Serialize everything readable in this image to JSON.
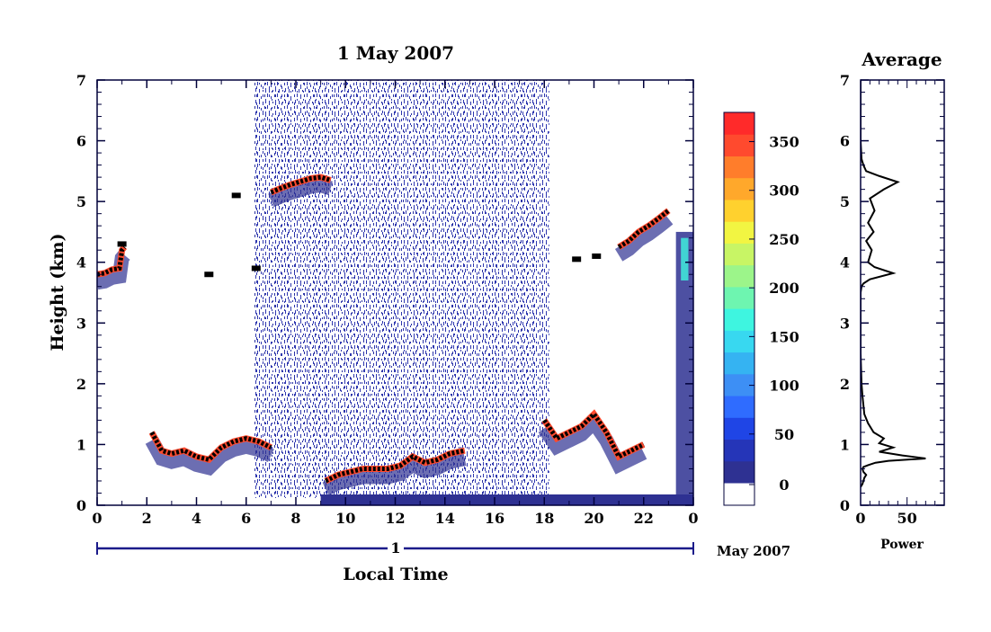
{
  "colors": {
    "colorbar": [
      "#ffffff",
      "#2e3192",
      "#2535b8",
      "#1f45e6",
      "#2f6cff",
      "#3d8ff5",
      "#35b3f2",
      "#38d8f0",
      "#3ef5e0",
      "#6ef5b0",
      "#9cf58a",
      "#c8f565",
      "#f2f542",
      "#ffd12e",
      "#ffa82b",
      "#ff7d2b",
      "#ff4a2e",
      "#ff2a2a"
    ],
    "axis": "#00003a",
    "track": "#1b1b8a"
  },
  "chart_data": [
    {
      "type": "heatmap",
      "title": "1 May 2007",
      "xlabel": "Local Time",
      "ylabel": "Height (km)",
      "x_ticks": [
        "0",
        "2",
        "4",
        "6",
        "8",
        "10",
        "12",
        "14",
        "16",
        "18",
        "20",
        "22",
        "0"
      ],
      "y_ticks": [
        "0",
        "1",
        "2",
        "3",
        "4",
        "5",
        "6",
        "7"
      ],
      "xlim": [
        0,
        24
      ],
      "ylim": [
        0,
        7
      ],
      "date_day": "1",
      "date_label": "May 2007",
      "noise_region_hours": [
        6.3,
        18.2
      ],
      "traces": [
        {
          "x": [
            0.0,
            0.3,
            0.6,
            0.9,
            1.0,
            1.1
          ],
          "y": [
            3.8,
            3.82,
            3.88,
            3.9,
            4.2,
            4.25
          ]
        },
        {
          "x": [
            2.2,
            2.6,
            3.0,
            3.5,
            4.0,
            4.5,
            5.0,
            5.5,
            6.0,
            6.5,
            7.0
          ],
          "y": [
            1.2,
            0.9,
            0.85,
            0.9,
            0.8,
            0.75,
            0.95,
            1.05,
            1.1,
            1.05,
            0.95
          ]
        },
        {
          "x": [
            7.0,
            7.4,
            7.8,
            8.2,
            8.6,
            9.0,
            9.4
          ],
          "y": [
            5.15,
            5.22,
            5.28,
            5.33,
            5.38,
            5.4,
            5.35
          ]
        },
        {
          "x": [
            9.2,
            9.7,
            10.2,
            10.7,
            11.2,
            11.7,
            12.2,
            12.7,
            13.2,
            13.7,
            14.2,
            14.8
          ],
          "y": [
            0.4,
            0.5,
            0.55,
            0.6,
            0.6,
            0.6,
            0.65,
            0.8,
            0.7,
            0.75,
            0.85,
            0.9
          ]
        },
        {
          "x": [
            18.0,
            18.5,
            19.0,
            19.5,
            20.0,
            20.5,
            21.0,
            21.5,
            22.0
          ],
          "y": [
            1.4,
            1.1,
            1.2,
            1.3,
            1.5,
            1.2,
            0.8,
            0.9,
            1.0
          ]
        },
        {
          "x": [
            21.0,
            21.4,
            21.8,
            22.2,
            22.6,
            23.0
          ],
          "y": [
            4.25,
            4.35,
            4.5,
            4.6,
            4.72,
            4.85
          ]
        }
      ],
      "isolated_echoes": [
        {
          "x": 4.5,
          "y": 3.8
        },
        {
          "x": 5.6,
          "y": 5.1
        },
        {
          "x": 6.4,
          "y": 3.9
        },
        {
          "x": 20.1,
          "y": 4.1
        },
        {
          "x": 19.3,
          "y": 4.05
        },
        {
          "x": 1.0,
          "y": 4.3
        }
      ],
      "colorbar": {
        "ticks": [
          "0",
          "50",
          "100",
          "150",
          "200",
          "250",
          "300",
          "350"
        ],
        "range": [
          0,
          380
        ]
      }
    },
    {
      "type": "line",
      "title": "Average",
      "xlabel": "Power",
      "x_ticks": [
        "0",
        "50"
      ],
      "y_ticks": [
        "0",
        "1",
        "2",
        "3",
        "4",
        "5",
        "6",
        "7"
      ],
      "xlim": [
        0,
        90
      ],
      "ylim": [
        0,
        7
      ],
      "series": [
        {
          "x": [
            0,
            2,
            4,
            6,
            3,
            2,
            3,
            8,
            16,
            30,
            70,
            45,
            20,
            35,
            20,
            25,
            14,
            8,
            4,
            3,
            2,
            1,
            0,
            0,
            1,
            3,
            10,
            35,
            15,
            8,
            12,
            6,
            14,
            8,
            15,
            10,
            25,
            40,
            20,
            6,
            3,
            1,
            0,
            0
          ],
          "y": [
            0.3,
            0.35,
            0.45,
            0.5,
            0.55,
            0.6,
            0.63,
            0.66,
            0.7,
            0.73,
            0.77,
            0.82,
            0.88,
            0.95,
            1.02,
            1.1,
            1.2,
            1.35,
            1.5,
            1.65,
            1.8,
            2.0,
            2.5,
            3.5,
            3.6,
            3.65,
            3.72,
            3.82,
            3.92,
            4.0,
            4.2,
            4.35,
            4.5,
            4.65,
            4.85,
            5.05,
            5.2,
            5.32,
            5.42,
            5.5,
            5.6,
            5.7,
            6.0,
            7.0
          ]
        }
      ]
    }
  ]
}
